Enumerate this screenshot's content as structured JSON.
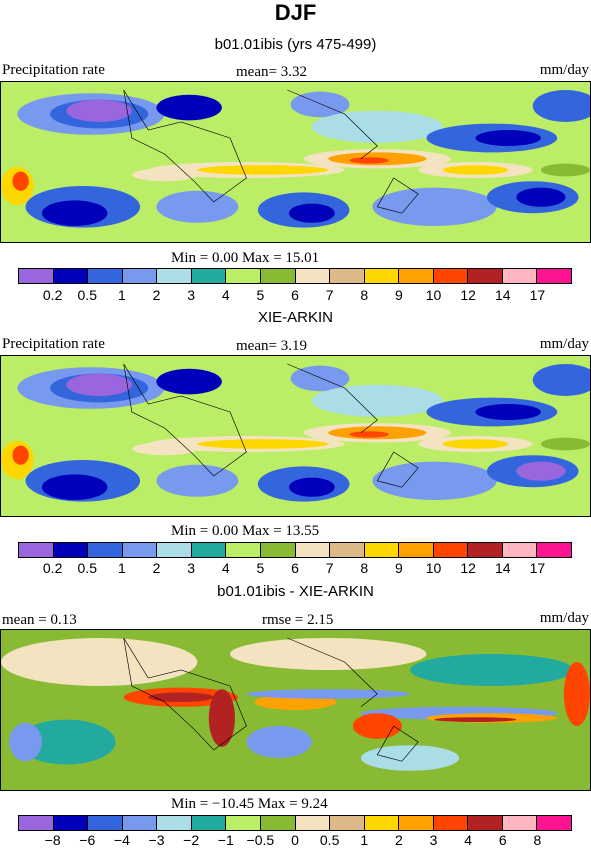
{
  "title": "DJF",
  "colors": [
    "#9966dd",
    "#0000bb",
    "#3366dd",
    "#7799ee",
    "#aadde6",
    "#22aaa0",
    "#bbee66",
    "#88bb33",
    "#f3e3c0",
    "#ddb98a",
    "#ffd700",
    "#ffa100",
    "#ff4500",
    "#b22222",
    "#ffb6c1",
    "#ff1493"
  ],
  "panels": [
    {
      "title": "b01.01ibis (yrs 475-499)",
      "left_label": "Precipitation rate",
      "center_label": "mean=   3.32",
      "right_label": "mm/day",
      "min_max": "Min =   0.00 Max =   15.01",
      "levels": [
        "0.2",
        "0.5",
        "1",
        "2",
        "3",
        "4",
        "5",
        "6",
        "7",
        "8",
        "9",
        "10",
        "12",
        "14",
        "17"
      ],
      "variant": "model"
    },
    {
      "title": "XIE-ARKIN",
      "left_label": "Precipitation rate",
      "center_label": "mean=   3.19",
      "right_label": "mm/day",
      "min_max": "Min =   0.00 Max =   13.55",
      "levels": [
        "0.2",
        "0.5",
        "1",
        "2",
        "3",
        "4",
        "5",
        "6",
        "7",
        "8",
        "9",
        "10",
        "12",
        "14",
        "17"
      ],
      "variant": "obs"
    },
    {
      "title": "b01.01ibis - XIE-ARKIN",
      "left_label": "mean =    0.13",
      "center_label": "rmse =    2.15",
      "right_label": "mm/day",
      "min_max": "Min = −10.45 Max =    9.24",
      "levels": [
        "−8",
        "−6",
        "−4",
        "−3",
        "−2",
        "−1",
        "−0.5",
        "0",
        "0.5",
        "1",
        "2",
        "3",
        "4",
        "6",
        "8"
      ],
      "variant": "diff"
    }
  ]
}
